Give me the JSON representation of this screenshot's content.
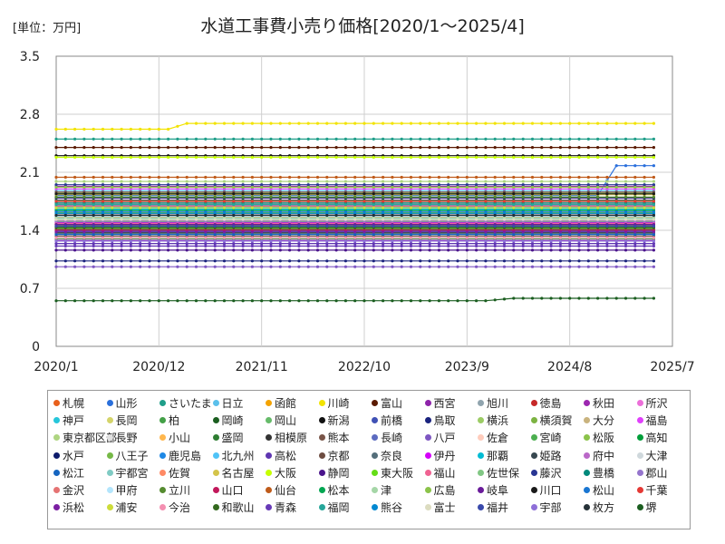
{
  "chart_data": {
    "type": "line",
    "title": "水道工事費小売り価格[2020/1～2025/4]",
    "unit_label": "[単位：万円]",
    "xlabel": "",
    "ylabel": "",
    "x_ticks": [
      "2020/1",
      "2020/12",
      "2021/11",
      "2022/10",
      "2023/9",
      "2024/8",
      "2025/7"
    ],
    "x_range": [
      "2020/1",
      "2025/7"
    ],
    "y_ticks": [
      "0",
      "0.7",
      "1.4",
      "2.1",
      "2.8",
      "3.5"
    ],
    "ylim": [
      0,
      3.5
    ],
    "period": [
      "2020/1",
      "2025/4"
    ],
    "grid": true,
    "legend_position": "bottom",
    "series": [
      {
        "name": "札幌",
        "color": "#e8601c",
        "points": [
          [
            0,
            1.47
          ],
          [
            64,
            1.47
          ]
        ]
      },
      {
        "name": "山形",
        "color": "#2a6fdb",
        "points": [
          [
            0,
            1.82
          ],
          [
            58,
            1.82
          ],
          [
            60,
            2.18
          ],
          [
            64,
            2.18
          ]
        ]
      },
      {
        "name": "さいたま",
        "color": "#1f9e89",
        "points": [
          [
            0,
            2.5
          ],
          [
            64,
            2.5
          ]
        ]
      },
      {
        "name": "日立",
        "color": "#5bc0eb",
        "points": [
          [
            0,
            1.88
          ],
          [
            64,
            1.88
          ]
        ]
      },
      {
        "name": "函館",
        "color": "#f4a300",
        "points": [
          [
            0,
            1.63
          ],
          [
            64,
            1.63
          ]
        ]
      },
      {
        "name": "川崎",
        "color": "#f2e300",
        "points": [
          [
            0,
            2.62
          ],
          [
            12,
            2.62
          ],
          [
            14,
            2.69
          ],
          [
            64,
            2.69
          ]
        ]
      },
      {
        "name": "富山",
        "color": "#5a1a00",
        "points": [
          [
            0,
            2.4
          ],
          [
            64,
            2.4
          ]
        ]
      },
      {
        "name": "西宮",
        "color": "#8e24aa",
        "points": [
          [
            0,
            1.28
          ],
          [
            64,
            1.28
          ]
        ]
      },
      {
        "name": "旭川",
        "color": "#90a4ae",
        "points": [
          [
            0,
            1.72
          ],
          [
            64,
            1.72
          ]
        ]
      },
      {
        "name": "徳島",
        "color": "#c62828",
        "points": [
          [
            0,
            1.58
          ],
          [
            64,
            1.58
          ]
        ]
      },
      {
        "name": "秋田",
        "color": "#9c27b0",
        "points": [
          [
            0,
            1.93
          ],
          [
            64,
            1.93
          ]
        ]
      },
      {
        "name": "所沢",
        "color": "#ec6fd9",
        "points": [
          [
            0,
            1.77
          ],
          [
            64,
            1.77
          ]
        ]
      },
      {
        "name": "神戸",
        "color": "#26c6da",
        "points": [
          [
            0,
            1.68
          ],
          [
            64,
            1.68
          ]
        ]
      },
      {
        "name": "長岡",
        "color": "#d4d46a",
        "points": [
          [
            0,
            1.52
          ],
          [
            64,
            1.52
          ]
        ]
      },
      {
        "name": "柏",
        "color": "#43a047",
        "points": [
          [
            0,
            1.62
          ],
          [
            64,
            1.62
          ]
        ]
      },
      {
        "name": "岡崎",
        "color": "#1b5e20",
        "points": [
          [
            0,
            1.37
          ],
          [
            64,
            1.37
          ]
        ]
      },
      {
        "name": "岡山",
        "color": "#66bb6a",
        "points": [
          [
            0,
            1.5
          ],
          [
            64,
            1.5
          ]
        ]
      },
      {
        "name": "新潟",
        "color": "#111111",
        "points": [
          [
            0,
            2.3
          ],
          [
            64,
            2.3
          ]
        ]
      },
      {
        "name": "前橋",
        "color": "#3f51b5",
        "points": [
          [
            0,
            1.57
          ],
          [
            64,
            1.57
          ]
        ]
      },
      {
        "name": "鳥取",
        "color": "#1a237e",
        "points": [
          [
            0,
            1.03
          ],
          [
            64,
            1.03
          ]
        ]
      },
      {
        "name": "横浜",
        "color": "#9ccc65",
        "points": [
          [
            0,
            1.85
          ],
          [
            64,
            1.85
          ]
        ]
      },
      {
        "name": "横須賀",
        "color": "#7cb342",
        "points": [
          [
            0,
            1.46
          ],
          [
            64,
            1.46
          ]
        ]
      },
      {
        "name": "大分",
        "color": "#c9b37e",
        "points": [
          [
            0,
            1.6
          ],
          [
            64,
            1.6
          ]
        ]
      },
      {
        "name": "福島",
        "color": "#e040fb",
        "points": [
          [
            0,
            1.9
          ],
          [
            64,
            1.9
          ]
        ]
      },
      {
        "name": "東京都区部",
        "color": "#aed581",
        "points": [
          [
            0,
            1.99
          ],
          [
            64,
            1.99
          ]
        ]
      },
      {
        "name": "長野",
        "color": "#e0e0e0",
        "points": [
          [
            0,
            1.74
          ],
          [
            64,
            1.74
          ]
        ]
      },
      {
        "name": "小山",
        "color": "#ffb74d",
        "points": [
          [
            0,
            1.56
          ],
          [
            64,
            1.56
          ]
        ]
      },
      {
        "name": "盛岡",
        "color": "#2e7d32",
        "points": [
          [
            0,
            1.44
          ],
          [
            64,
            1.44
          ]
        ]
      },
      {
        "name": "相模原",
        "color": "#333333",
        "points": [
          [
            0,
            1.41
          ],
          [
            64,
            1.41
          ]
        ]
      },
      {
        "name": "熊本",
        "color": "#795548",
        "points": [
          [
            0,
            1.33
          ],
          [
            64,
            1.33
          ]
        ]
      },
      {
        "name": "長崎",
        "color": "#5c6bc0",
        "points": [
          [
            0,
            1.55
          ],
          [
            64,
            1.55
          ]
        ]
      },
      {
        "name": "八戸",
        "color": "#7e57c2",
        "points": [
          [
            0,
            0.96
          ],
          [
            64,
            0.96
          ]
        ]
      },
      {
        "name": "佐倉",
        "color": "#ffccbc",
        "points": [
          [
            0,
            1.59
          ],
          [
            64,
            1.59
          ]
        ]
      },
      {
        "name": "宮崎",
        "color": "#4caf50",
        "points": [
          [
            0,
            1.3
          ],
          [
            64,
            1.3
          ]
        ]
      },
      {
        "name": "松阪",
        "color": "#8bc34a",
        "points": [
          [
            0,
            1.42
          ],
          [
            64,
            1.42
          ]
        ]
      },
      {
        "name": "高知",
        "color": "#009e3a",
        "points": [
          [
            0,
            1.76
          ],
          [
            64,
            1.76
          ]
        ]
      },
      {
        "name": "水戸",
        "color": "#0d1b6b",
        "points": [
          [
            0,
            1.79
          ],
          [
            64,
            1.79
          ]
        ]
      },
      {
        "name": "八王子",
        "color": "#76b947",
        "points": [
          [
            0,
            1.71
          ],
          [
            64,
            1.71
          ]
        ]
      },
      {
        "name": "鹿児島",
        "color": "#1e88e5",
        "points": [
          [
            0,
            1.39
          ],
          [
            64,
            1.39
          ]
        ]
      },
      {
        "name": "北九州",
        "color": "#4fc3f7",
        "points": [
          [
            0,
            1.66
          ],
          [
            64,
            1.66
          ]
        ]
      },
      {
        "name": "高松",
        "color": "#5e35b1",
        "points": [
          [
            0,
            1.24
          ],
          [
            64,
            1.24
          ]
        ]
      },
      {
        "name": "京都",
        "color": "#6d4c41",
        "points": [
          [
            0,
            1.86
          ],
          [
            64,
            1.86
          ]
        ]
      },
      {
        "name": "奈良",
        "color": "#546e7a",
        "points": [
          [
            0,
            1.36
          ],
          [
            64,
            1.36
          ]
        ]
      },
      {
        "name": "伊丹",
        "color": "#d500f9",
        "points": [
          [
            0,
            1.49
          ],
          [
            64,
            1.49
          ]
        ]
      },
      {
        "name": "那覇",
        "color": "#00bcd4",
        "points": [
          [
            0,
            1.65
          ],
          [
            64,
            1.65
          ]
        ]
      },
      {
        "name": "姫路",
        "color": "#37474f",
        "points": [
          [
            0,
            1.45
          ],
          [
            64,
            1.45
          ]
        ]
      },
      {
        "name": "府中",
        "color": "#ba68c8",
        "points": [
          [
            0,
            1.7
          ],
          [
            64,
            1.7
          ]
        ]
      },
      {
        "name": "大津",
        "color": "#cfd8dc",
        "points": [
          [
            0,
            1.63
          ],
          [
            64,
            1.63
          ]
        ]
      },
      {
        "name": "松江",
        "color": "#1565c0",
        "points": [
          [
            0,
            1.35
          ],
          [
            64,
            1.35
          ]
        ]
      },
      {
        "name": "宇都宮",
        "color": "#80cbc4",
        "points": [
          [
            0,
            1.54
          ],
          [
            64,
            1.54
          ]
        ]
      },
      {
        "name": "佐賀",
        "color": "#ff8a65",
        "points": [
          [
            0,
            1.58
          ],
          [
            64,
            1.58
          ]
        ]
      },
      {
        "name": "名古屋",
        "color": "#d4c44a",
        "points": [
          [
            0,
            1.83
          ],
          [
            64,
            1.83
          ]
        ]
      },
      {
        "name": "大阪",
        "color": "#c6ff00",
        "points": [
          [
            0,
            2.28
          ],
          [
            64,
            2.28
          ]
        ]
      },
      {
        "name": "静岡",
        "color": "#4a148c",
        "points": [
          [
            0,
            1.16
          ],
          [
            64,
            1.16
          ]
        ]
      },
      {
        "name": "東大阪",
        "color": "#64dd17",
        "points": [
          [
            0,
            1.61
          ],
          [
            64,
            1.61
          ]
        ]
      },
      {
        "name": "福山",
        "color": "#f06292",
        "points": [
          [
            0,
            1.48
          ],
          [
            64,
            1.48
          ]
        ]
      },
      {
        "name": "佐世保",
        "color": "#81c784",
        "points": [
          [
            0,
            1.53
          ],
          [
            64,
            1.53
          ]
        ]
      },
      {
        "name": "藤沢",
        "color": "#283593",
        "points": [
          [
            0,
            1.95
          ],
          [
            64,
            1.95
          ]
        ]
      },
      {
        "name": "豊橋",
        "color": "#00897b",
        "points": [
          [
            0,
            1.73
          ],
          [
            64,
            1.73
          ]
        ]
      },
      {
        "name": "郡山",
        "color": "#9575cd",
        "points": [
          [
            0,
            1.51
          ],
          [
            64,
            1.51
          ]
        ]
      },
      {
        "name": "金沢",
        "color": "#e57373",
        "points": [
          [
            0,
            1.69
          ],
          [
            64,
            1.69
          ]
        ]
      },
      {
        "name": "甲府",
        "color": "#b3e5fc",
        "points": [
          [
            0,
            1.57
          ],
          [
            64,
            1.57
          ]
        ]
      },
      {
        "name": "立川",
        "color": "#558b2f",
        "points": [
          [
            0,
            1.8
          ],
          [
            64,
            1.8
          ]
        ]
      },
      {
        "name": "山口",
        "color": "#c2185b",
        "points": [
          [
            0,
            1.4
          ],
          [
            64,
            1.4
          ]
        ]
      },
      {
        "name": "仙台",
        "color": "#bf5b1a",
        "points": [
          [
            0,
            2.04
          ],
          [
            64,
            2.04
          ]
        ]
      },
      {
        "name": "松本",
        "color": "#00a651",
        "points": [
          [
            0,
            1.64
          ],
          [
            64,
            1.64
          ]
        ]
      },
      {
        "name": "津",
        "color": "#a5d6a7",
        "points": [
          [
            0,
            1.55
          ],
          [
            64,
            1.55
          ]
        ]
      },
      {
        "name": "広島",
        "color": "#8bc34a",
        "points": [
          [
            0,
            1.92
          ],
          [
            64,
            1.92
          ]
        ]
      },
      {
        "name": "岐阜",
        "color": "#6a1b9a",
        "points": [
          [
            0,
            1.47
          ],
          [
            64,
            1.47
          ]
        ]
      },
      {
        "name": "川口",
        "color": "#1a1a1a",
        "points": [
          [
            0,
            1.84
          ],
          [
            64,
            1.84
          ]
        ]
      },
      {
        "name": "松山",
        "color": "#1976d2",
        "points": [
          [
            0,
            1.62
          ],
          [
            64,
            1.62
          ]
        ]
      },
      {
        "name": "千葉",
        "color": "#e53935",
        "points": [
          [
            0,
            1.75
          ],
          [
            64,
            1.75
          ]
        ]
      },
      {
        "name": "浜松",
        "color": "#7b1fa2",
        "points": [
          [
            0,
            1.38
          ],
          [
            64,
            1.38
          ]
        ]
      },
      {
        "name": "浦安",
        "color": "#cddc39",
        "points": [
          [
            0,
            1.67
          ],
          [
            64,
            1.67
          ]
        ]
      },
      {
        "name": "今治",
        "color": "#f48fb1",
        "points": [
          [
            0,
            1.31
          ],
          [
            64,
            1.31
          ]
        ]
      },
      {
        "name": "和歌山",
        "color": "#33691e",
        "points": [
          [
            0,
            1.43
          ],
          [
            64,
            1.43
          ]
        ]
      },
      {
        "name": "青森",
        "color": "#673ab7",
        "points": [
          [
            0,
            1.21
          ],
          [
            64,
            1.21
          ]
        ]
      },
      {
        "name": "福岡",
        "color": "#26a69a",
        "points": [
          [
            0,
            1.71
          ],
          [
            64,
            1.71
          ]
        ]
      },
      {
        "name": "熊谷",
        "color": "#0288d1",
        "points": [
          [
            0,
            1.6
          ],
          [
            64,
            1.6
          ]
        ]
      },
      {
        "name": "富士",
        "color": "#dcdcc0",
        "points": [
          [
            0,
            1.53
          ],
          [
            64,
            1.53
          ]
        ]
      },
      {
        "name": "福井",
        "color": "#3949ab",
        "points": [
          [
            0,
            1.45
          ],
          [
            64,
            1.45
          ]
        ]
      },
      {
        "name": "宇部",
        "color": "#8e6fd8",
        "points": [
          [
            0,
            1.27
          ],
          [
            64,
            1.27
          ]
        ]
      },
      {
        "name": "枚方",
        "color": "#263238",
        "points": [
          [
            0,
            1.58
          ],
          [
            64,
            1.58
          ]
        ]
      },
      {
        "name": "堺",
        "color": "#1b5e20",
        "points": [
          [
            0,
            0.55
          ],
          [
            46,
            0.55
          ],
          [
            49,
            0.58
          ],
          [
            64,
            0.58
          ]
        ]
      }
    ]
  }
}
